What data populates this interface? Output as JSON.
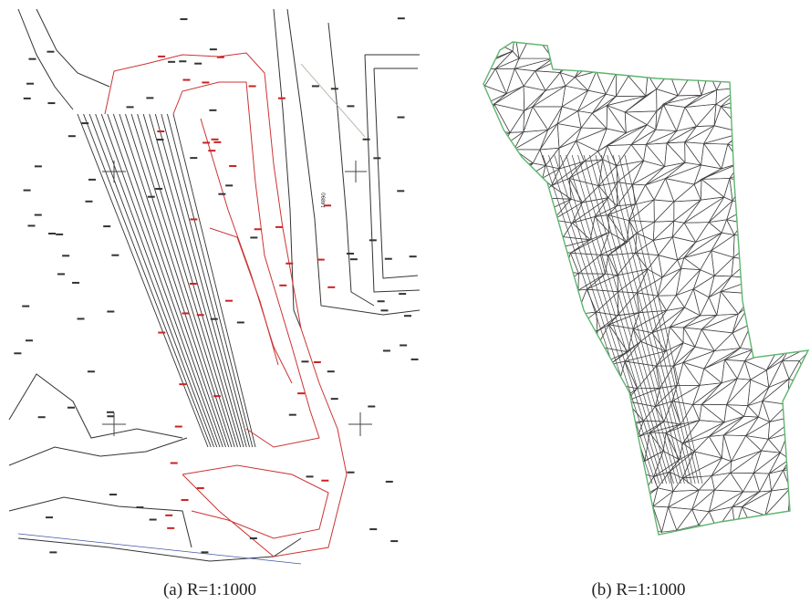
{
  "panels": [
    {
      "caption": "(a)  R=1:1000",
      "labels": [
        "14890"
      ]
    },
    {
      "caption": "(b)  R=1:1000"
    }
  ]
}
